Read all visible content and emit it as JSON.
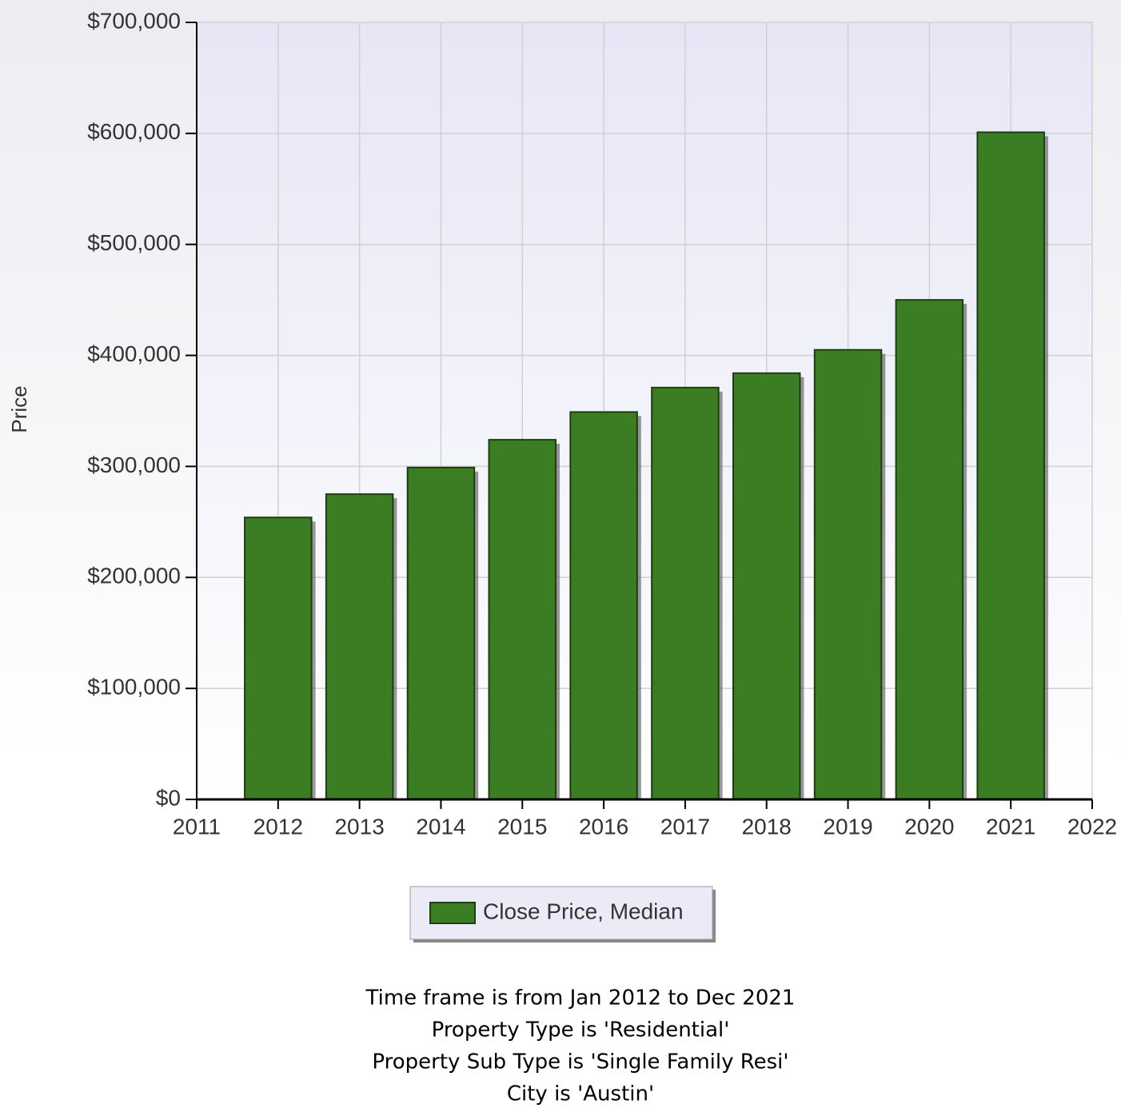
{
  "chart_data": {
    "type": "bar",
    "y_label": "Price",
    "x": [
      2012,
      2013,
      2014,
      2015,
      2016,
      2017,
      2018,
      2019,
      2020,
      2021
    ],
    "series": [
      {
        "name": "Close Price, Median",
        "color": "#3a7d22",
        "values": [
          254000,
          275000,
          299000,
          324000,
          349000,
          371000,
          384000,
          405000,
          450000,
          601000
        ]
      }
    ],
    "xlim": [
      2011,
      2022
    ],
    "xticks": [
      2011,
      2012,
      2013,
      2014,
      2015,
      2016,
      2017,
      2018,
      2019,
      2020,
      2021,
      2022
    ],
    "ylim": [
      0,
      700000
    ],
    "yticks": [
      {
        "value": 0,
        "label": "$0"
      },
      {
        "value": 100000,
        "label": "$100,000"
      },
      {
        "value": 200000,
        "label": "$200,000"
      },
      {
        "value": 300000,
        "label": "$300,000"
      },
      {
        "value": 400000,
        "label": "$400,000"
      },
      {
        "value": 500000,
        "label": "$500,000"
      },
      {
        "value": 600000,
        "label": "$600,000"
      },
      {
        "value": 700000,
        "label": "$700,000"
      }
    ],
    "grid": true,
    "legend": "bottom",
    "notes": [
      "Time frame is from Jan 2012 to Dec 2021",
      "Property Type is 'Residential'",
      "Property Sub Type is 'Single Family Resi'",
      "City is 'Austin'"
    ]
  }
}
